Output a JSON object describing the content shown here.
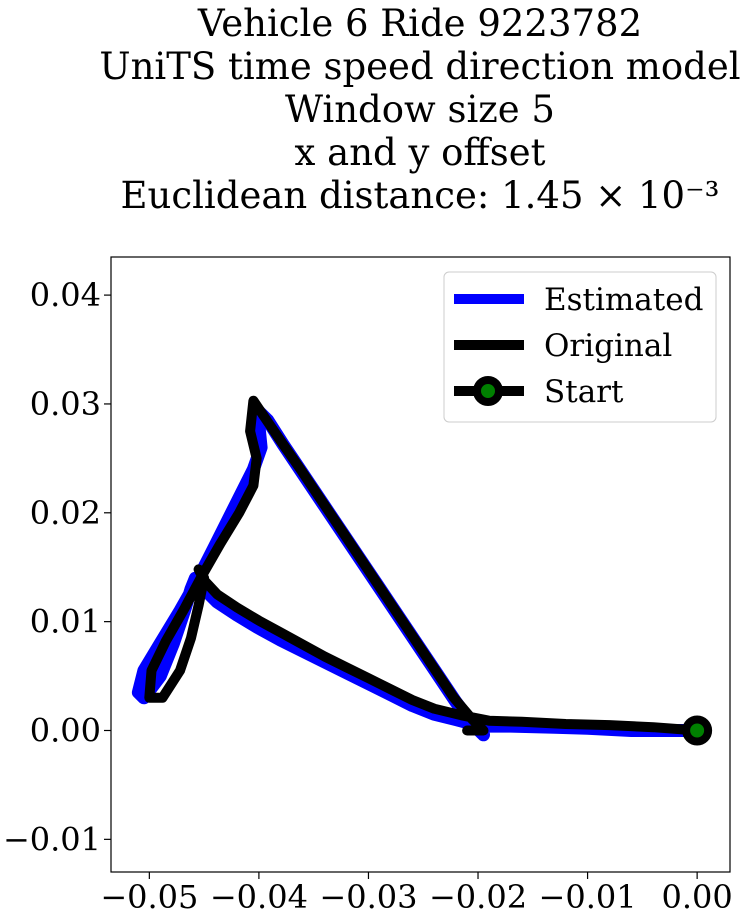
{
  "chart_data": {
    "type": "line",
    "title_lines": [
      "Vehicle 6 Ride 9223782",
      "UniTS time speed direction model",
      "Window size 5",
      "x and y offset",
      "Euclidean distance: 1.45 × 10⁻³"
    ],
    "xlabel": "",
    "ylabel": "",
    "xlim": [
      -0.0535,
      0.003
    ],
    "ylim": [
      -0.013,
      0.0435
    ],
    "xticks": [
      -0.05,
      -0.04,
      -0.03,
      -0.02,
      -0.01,
      0.0
    ],
    "xtick_labels": [
      "−0.05",
      "−0.04",
      "−0.03",
      "−0.02",
      "−0.01",
      "0.00"
    ],
    "yticks": [
      -0.01,
      0.0,
      0.01,
      0.02,
      0.03,
      0.04
    ],
    "ytick_labels": [
      "−0.01",
      "0.00",
      "0.01",
      "0.02",
      "0.03",
      "0.04"
    ],
    "grid": false,
    "legend_position": "top-right",
    "series": [
      {
        "name": "Estimated",
        "color": "#0000ff",
        "points": [
          [
            0.0,
            0.0
          ],
          [
            -0.006,
            0.0
          ],
          [
            -0.01,
            0.0002
          ],
          [
            -0.013,
            0.0003
          ],
          [
            -0.017,
            0.0004
          ],
          [
            -0.0192,
            0.0004
          ],
          [
            -0.0205,
            0.0006
          ],
          [
            -0.022,
            0.001
          ],
          [
            -0.024,
            0.0015
          ],
          [
            -0.026,
            0.0023
          ],
          [
            -0.028,
            0.0033
          ],
          [
            -0.03,
            0.0043
          ],
          [
            -0.032,
            0.0053
          ],
          [
            -0.034,
            0.0063
          ],
          [
            -0.036,
            0.0073
          ],
          [
            -0.038,
            0.0083
          ],
          [
            -0.04,
            0.0094
          ],
          [
            -0.042,
            0.0106
          ],
          [
            -0.0438,
            0.0118
          ],
          [
            -0.0452,
            0.0132
          ],
          [
            -0.0458,
            0.014
          ],
          [
            -0.0462,
            0.013
          ],
          [
            -0.0468,
            0.011
          ],
          [
            -0.0478,
            0.008
          ],
          [
            -0.049,
            0.005
          ],
          [
            -0.0505,
            0.003
          ],
          [
            -0.051,
            0.0035
          ],
          [
            -0.0505,
            0.0055
          ],
          [
            -0.049,
            0.008
          ],
          [
            -0.0472,
            0.011
          ],
          [
            -0.0455,
            0.014
          ],
          [
            -0.044,
            0.017
          ],
          [
            -0.042,
            0.021
          ],
          [
            -0.0405,
            0.024
          ],
          [
            -0.0398,
            0.026
          ],
          [
            -0.04,
            0.028
          ],
          [
            -0.04,
            0.0293
          ],
          [
            -0.0392,
            0.0285
          ],
          [
            -0.0378,
            0.0263
          ],
          [
            -0.036,
            0.0236
          ],
          [
            -0.034,
            0.0206
          ],
          [
            -0.032,
            0.0176
          ],
          [
            -0.03,
            0.0146
          ],
          [
            -0.028,
            0.0116
          ],
          [
            -0.026,
            0.0086
          ],
          [
            -0.024,
            0.0056
          ],
          [
            -0.022,
            0.0026
          ],
          [
            -0.0205,
            0.0006
          ],
          [
            -0.0195,
            -0.0004
          ]
        ]
      },
      {
        "name": "Original",
        "color": "#000000",
        "points": [
          [
            0.0,
            0.0
          ],
          [
            -0.004,
            0.0003
          ],
          [
            -0.008,
            0.0005
          ],
          [
            -0.012,
            0.0006
          ],
          [
            -0.016,
            0.0008
          ],
          [
            -0.019,
            0.0009
          ],
          [
            -0.0215,
            0.0014
          ],
          [
            -0.024,
            0.002
          ],
          [
            -0.026,
            0.0028
          ],
          [
            -0.028,
            0.0038
          ],
          [
            -0.03,
            0.0048
          ],
          [
            -0.032,
            0.0058
          ],
          [
            -0.034,
            0.0068
          ],
          [
            -0.036,
            0.0079
          ],
          [
            -0.038,
            0.009
          ],
          [
            -0.04,
            0.0101
          ],
          [
            -0.042,
            0.0113
          ],
          [
            -0.0438,
            0.0125
          ],
          [
            -0.045,
            0.0138
          ],
          [
            -0.0455,
            0.0148
          ],
          [
            -0.045,
            0.014
          ],
          [
            -0.0455,
            0.0115
          ],
          [
            -0.0462,
            0.0085
          ],
          [
            -0.0472,
            0.0055
          ],
          [
            -0.0488,
            0.003
          ],
          [
            -0.05,
            0.003
          ],
          [
            -0.0498,
            0.0055
          ],
          [
            -0.0485,
            0.0082
          ],
          [
            -0.0468,
            0.0112
          ],
          [
            -0.0452,
            0.0142
          ],
          [
            -0.0435,
            0.0172
          ],
          [
            -0.0418,
            0.02
          ],
          [
            -0.0405,
            0.0225
          ],
          [
            -0.0402,
            0.025
          ],
          [
            -0.0408,
            0.0275
          ],
          [
            -0.0405,
            0.0303
          ],
          [
            -0.0395,
            0.0288
          ],
          [
            -0.038,
            0.0266
          ],
          [
            -0.0362,
            0.024
          ],
          [
            -0.0342,
            0.021
          ],
          [
            -0.0322,
            0.018
          ],
          [
            -0.0302,
            0.015
          ],
          [
            -0.0282,
            0.012
          ],
          [
            -0.0262,
            0.009
          ],
          [
            -0.0242,
            0.006
          ],
          [
            -0.0222,
            0.003
          ],
          [
            -0.0205,
            0.001
          ],
          [
            -0.0195,
            0.0
          ],
          [
            -0.021,
            0.0
          ]
        ]
      }
    ],
    "start_marker": {
      "name": "Start",
      "x": 0.0,
      "y": 0.0,
      "edge_color": "#000000",
      "face_color": "#008000"
    }
  }
}
